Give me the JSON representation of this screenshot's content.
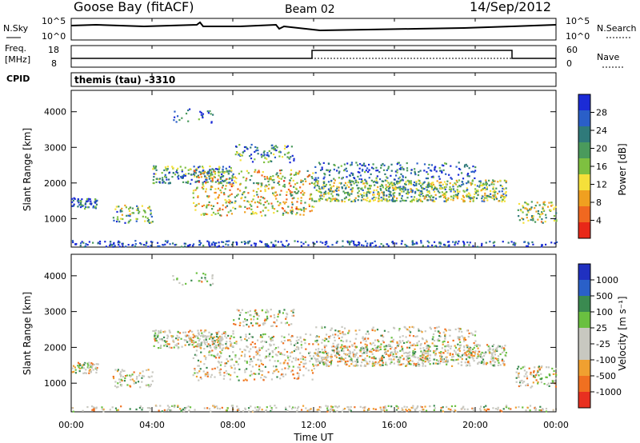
{
  "header": {
    "station": "Goose Bay (fitACF)",
    "beam": "Beam 02",
    "date": "14/Sep/2012"
  },
  "noise_panel": {
    "left_label": "N.Sky",
    "left_ticks": [
      "10^5",
      "10^0"
    ],
    "right_label": "N.Search",
    "right_ticks": [
      "10^5",
      "10^0"
    ]
  },
  "freq_panel": {
    "left_label_1": "Freq.",
    "left_label_2": "[MHz]",
    "left_ticks": [
      "18",
      "8"
    ],
    "right_label": "Nave",
    "right_ticks": [
      "60",
      "0"
    ],
    "cpid_label": "CPID"
  },
  "cpid_text": "themis (tau) -3310",
  "x_axis": {
    "label": "Time UT",
    "ticks": [
      "00:00",
      "04:00",
      "08:00",
      "12:00",
      "16:00",
      "20:00",
      "00:00"
    ]
  },
  "chart_data": [
    {
      "type": "heatmap",
      "panel": "power",
      "ylabel": "Slant Range [km]",
      "yticks": [
        1000,
        2000,
        3000,
        4000
      ],
      "ylim": [
        200,
        4600
      ],
      "xlim": [
        0,
        24
      ],
      "colorbar_label": "Power [dB]",
      "colorbar_ticks": [
        4,
        8,
        12,
        16,
        20,
        24,
        28
      ],
      "colorbar_colors": [
        "#1b2bd6",
        "#2a5fc8",
        "#2f7a7a",
        "#4a9a5c",
        "#7ec040",
        "#f5e03a",
        "#f0a020",
        "#f06820",
        "#e82818"
      ]
    },
    {
      "type": "heatmap",
      "panel": "velocity",
      "ylabel": "Slant Range [km]",
      "yticks": [
        1000,
        2000,
        3000,
        4000
      ],
      "ylim": [
        200,
        4600
      ],
      "xlim": [
        0,
        24
      ],
      "colorbar_label": "Velocity [m s⁻¹]",
      "colorbar_ticks": [
        "1000",
        "500",
        "100",
        "25",
        "-25",
        "-100",
        "-500",
        "-1000"
      ],
      "colorbar_colors": [
        "#2030c0",
        "#2a60c8",
        "#3a8a50",
        "#6ac040",
        "#c8c8c0",
        "#c8c8c0",
        "#f0a030",
        "#f07020",
        "#e83020"
      ]
    }
  ]
}
